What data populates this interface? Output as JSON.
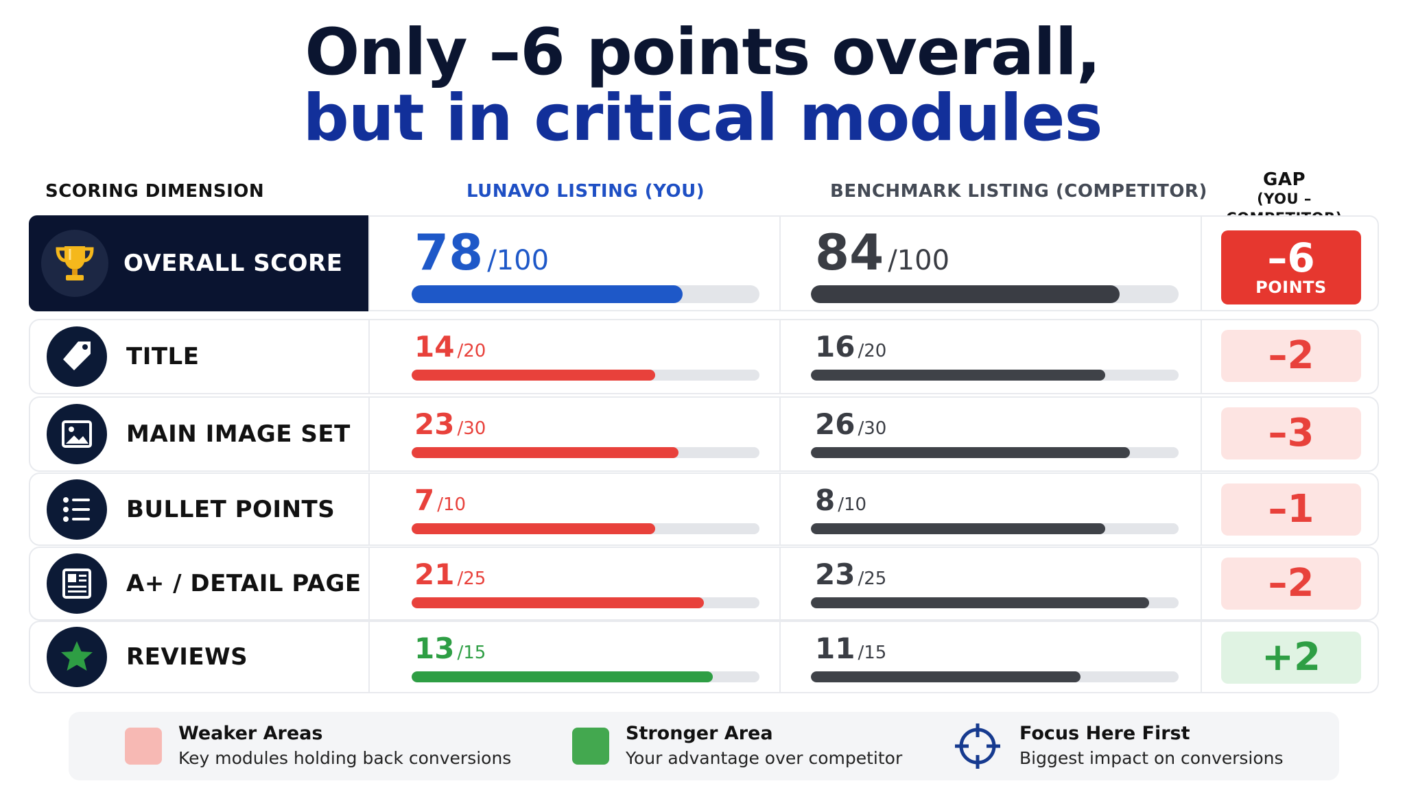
{
  "title": {
    "line1": "Only –6 points overall,",
    "line2": "but in critical modules"
  },
  "columns": {
    "dimension": "SCORING DIMENSION",
    "you": "LUNAVO LISTING (YOU)",
    "competitor": "BENCHMARK LISTING (COMPETITOR)",
    "gap": "GAP",
    "gap_sub": "(YOU – COMPETITOR)"
  },
  "colors": {
    "you_overall": "#1e58c8",
    "weaker": "#e8413b",
    "stronger": "#2e9e44",
    "competitor": "#3f4248",
    "track": "#e3e5e9",
    "gap_overall_bg": "#e6372f",
    "gap_weaker_bg": "#fde4e2",
    "gap_weaker_text": "#e8413b",
    "gap_stronger_bg": "#e0f3e3",
    "gap_stronger_text": "#2e9e44"
  },
  "chart_data": {
    "type": "bar",
    "orientation": "horizontal",
    "categories": [
      "OVERALL SCORE",
      "TITLE",
      "MAIN IMAGE SET",
      "BULLET POINTS",
      "A+ / DETAIL PAGE",
      "REVIEWS"
    ],
    "max": [
      100,
      20,
      30,
      10,
      25,
      15
    ],
    "series": [
      {
        "name": "LUNAVO LISTING (YOU)",
        "values": [
          78,
          14,
          23,
          7,
          21,
          13
        ]
      },
      {
        "name": "BENCHMARK LISTING (COMPETITOR)",
        "values": [
          84,
          16,
          26,
          8,
          23,
          11
        ]
      }
    ],
    "gap": [
      "–6",
      "–2",
      "–3",
      "–1",
      "–2",
      "+2"
    ],
    "gap_unit": "POINTS",
    "status": [
      "overall",
      "weaker",
      "weaker",
      "weaker",
      "weaker",
      "stronger"
    ],
    "icons": [
      "trophy-icon",
      "tag-icon",
      "image-icon",
      "list-icon",
      "document-icon",
      "star-icon"
    ]
  },
  "legend": [
    {
      "title": "Weaker Areas",
      "desc": "Key modules holding back conversions",
      "color": "#f7b9b4",
      "icon": "swatch"
    },
    {
      "title": "Stronger Area",
      "desc": "Your advantage over competitor",
      "color": "#43a84f",
      "icon": "swatch"
    },
    {
      "title": "Focus Here First",
      "desc": "Biggest impact on conversions",
      "color": "#163a8f",
      "icon": "crosshair-icon"
    }
  ]
}
